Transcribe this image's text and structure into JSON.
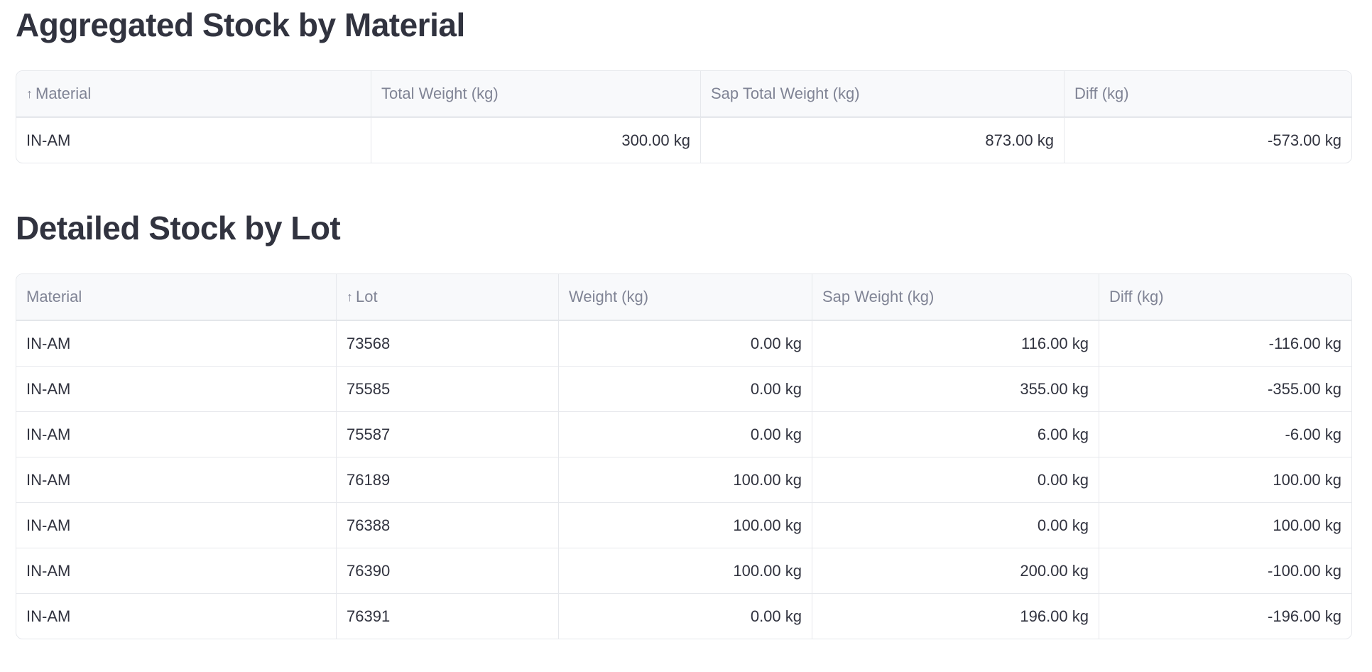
{
  "aggregated": {
    "title": "Aggregated Stock by Material",
    "columns": [
      "Material",
      "Total Weight (kg)",
      "Sap Total Weight (kg)",
      "Diff (kg)"
    ],
    "sort_column": "Material",
    "sort_icon": "arrow-up-icon",
    "rows": [
      [
        "IN-AM",
        "300.00 kg",
        "873.00 kg",
        "-573.00 kg"
      ]
    ]
  },
  "detailed": {
    "title": "Detailed Stock by Lot",
    "columns": [
      "Material",
      "Lot",
      "Weight (kg)",
      "Sap Weight (kg)",
      "Diff (kg)"
    ],
    "sort_column": "Lot",
    "sort_icon": "arrow-up-icon",
    "rows": [
      [
        "IN-AM",
        "73568",
        "0.00 kg",
        "116.00 kg",
        "-116.00 kg"
      ],
      [
        "IN-AM",
        "75585",
        "0.00 kg",
        "355.00 kg",
        "-355.00 kg"
      ],
      [
        "IN-AM",
        "75587",
        "0.00 kg",
        "6.00 kg",
        "-6.00 kg"
      ],
      [
        "IN-AM",
        "76189",
        "100.00 kg",
        "0.00 kg",
        "100.00 kg"
      ],
      [
        "IN-AM",
        "76388",
        "100.00 kg",
        "0.00 kg",
        "100.00 kg"
      ],
      [
        "IN-AM",
        "76390",
        "100.00 kg",
        "200.00 kg",
        "-100.00 kg"
      ],
      [
        "IN-AM",
        "76391",
        "0.00 kg",
        "196.00 kg",
        "-196.00 kg"
      ]
    ]
  }
}
